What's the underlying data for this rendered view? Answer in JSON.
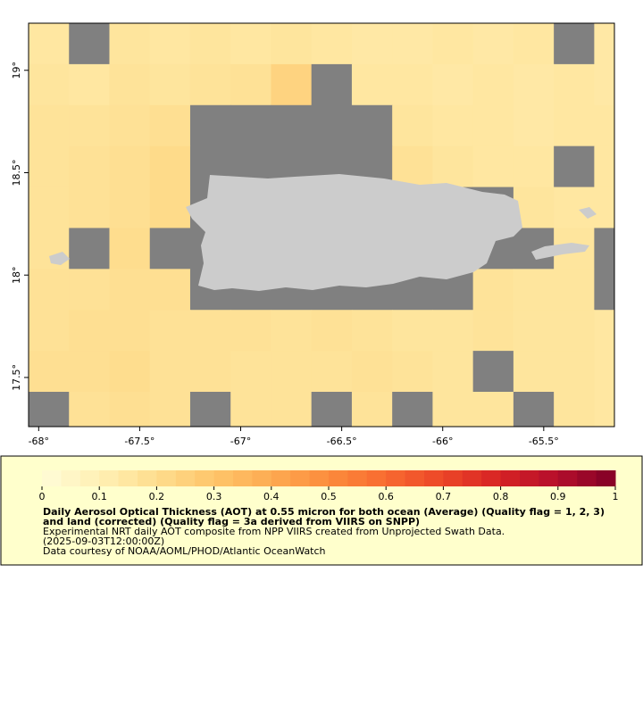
{
  "chart_data": {
    "type": "heatmap",
    "xlim": [
      -68.05,
      -65.15
    ],
    "ylim": [
      17.26,
      19.23
    ],
    "xticks": [
      {
        "value": -68,
        "label": "-68°"
      },
      {
        "value": -67.5,
        "label": "-67.5°"
      },
      {
        "value": -67,
        "label": "-67°"
      },
      {
        "value": -66.5,
        "label": "-66.5°"
      },
      {
        "value": -66,
        "label": "-66°"
      },
      {
        "value": -65.5,
        "label": "-65.5°"
      }
    ],
    "yticks": [
      {
        "value": 17.5,
        "label": "17.5°"
      },
      {
        "value": 18,
        "label": "18°"
      },
      {
        "value": 18.5,
        "label": "18.5°"
      },
      {
        "value": 19,
        "label": "19°"
      }
    ],
    "x": [
      -68.05,
      -67.85,
      -67.65,
      -67.45,
      -67.25,
      -67.05,
      -66.85,
      -66.65,
      -66.45,
      -66.25,
      -66.05,
      -65.85,
      -65.65,
      -65.45,
      -65.25,
      -65.05
    ],
    "y": [
      19.23,
      19.03,
      18.83,
      18.63,
      18.43,
      18.23,
      18.03,
      17.83,
      17.63,
      17.43,
      17.23
    ],
    "values": [
      [
        0.15,
        null,
        0.16,
        0.15,
        0.16,
        0.15,
        0.16,
        0.15,
        0.14,
        0.14,
        0.15,
        0.14,
        0.15,
        null,
        0.14
      ],
      [
        0.16,
        0.15,
        0.17,
        0.16,
        0.17,
        0.18,
        0.24,
        null,
        0.15,
        0.15,
        0.14,
        0.15,
        0.14,
        0.15,
        0.14
      ],
      [
        0.17,
        0.17,
        0.18,
        0.19,
        null,
        null,
        null,
        null,
        null,
        0.16,
        0.15,
        0.15,
        0.14,
        0.15,
        0.15
      ],
      [
        0.17,
        0.18,
        0.19,
        0.21,
        null,
        null,
        null,
        null,
        null,
        0.18,
        0.16,
        0.15,
        0.15,
        null,
        0.15
      ],
      [
        0.17,
        0.18,
        0.19,
        0.21,
        null,
        null,
        null,
        null,
        null,
        null,
        null,
        null,
        0.16,
        0.15,
        0.15
      ],
      [
        0.17,
        null,
        0.2,
        null,
        null,
        null,
        null,
        null,
        null,
        null,
        null,
        null,
        null,
        0.16,
        null
      ],
      [
        0.18,
        0.18,
        0.19,
        0.19,
        null,
        null,
        null,
        null,
        null,
        null,
        null,
        0.17,
        0.16,
        0.16,
        null
      ],
      [
        0.18,
        0.19,
        0.19,
        0.18,
        0.18,
        0.18,
        0.17,
        0.18,
        0.17,
        0.16,
        0.16,
        0.17,
        0.16,
        0.16,
        0.15
      ],
      [
        0.19,
        0.19,
        0.2,
        0.18,
        0.18,
        0.17,
        0.17,
        0.17,
        0.18,
        0.17,
        0.16,
        null,
        0.16,
        0.16,
        0.15
      ],
      [
        null,
        0.18,
        0.19,
        0.18,
        null,
        0.17,
        0.17,
        null,
        0.17,
        null,
        0.16,
        0.16,
        null,
        0.16,
        0.15
      ]
    ],
    "colorbar": {
      "lim": [
        0,
        1
      ],
      "ticks": [
        0,
        0.1,
        0.2,
        0.3,
        0.4,
        0.5,
        0.6,
        0.7,
        0.8,
        0.9,
        1
      ],
      "colors": [
        "#fffcd8",
        "#fff0b4",
        "#fedd8e",
        "#fec56a",
        "#fdaa52",
        "#fc8c3c",
        "#f86a30",
        "#ec4628",
        "#d62224",
        "#b40e2c",
        "#800026"
      ]
    },
    "missing_color": "#808080",
    "title": "Daily Aerosol Optical Thickness (AOT) at 0.55 micron for both ocean (Average) (Quality flag = 1, 2, 3) and land (corrected) (Quality flag = 3a derived from VIIRS on SNPP)",
    "notes": [
      "Experimental NRT daily AOT composite from NPP VIIRS created from Unprojected Swath Data.",
      "(2025-09-03T12:00:00Z)",
      "Data courtesy of NOAA/AOML/PHOD/Atlantic OceanWatch"
    ]
  }
}
